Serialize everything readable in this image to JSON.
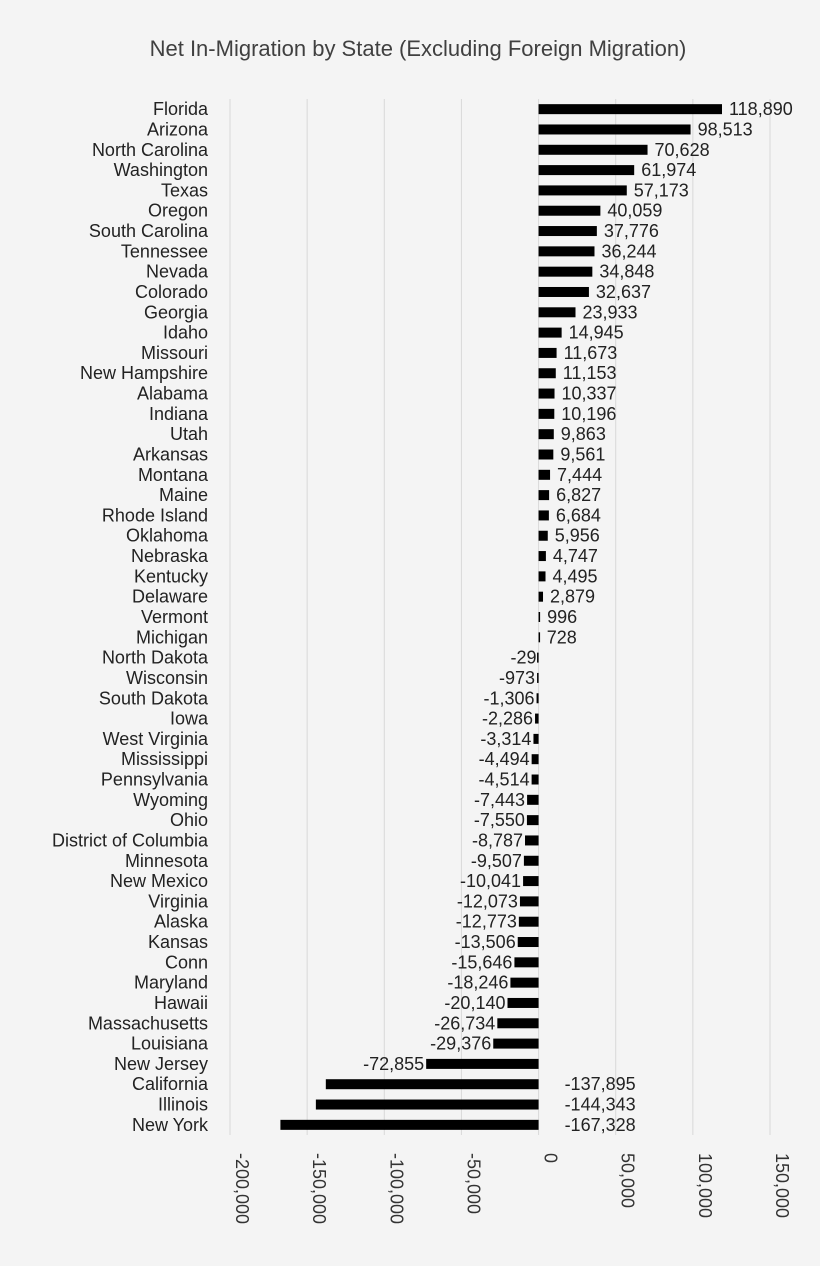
{
  "chart_data": {
    "type": "bar",
    "orientation": "horizontal",
    "title": "Net In-Migration by State (Excluding Foreign Migration)",
    "xlim": [
      -200000,
      150000
    ],
    "xticks": [
      -200000,
      -150000,
      -100000,
      -50000,
      0,
      50000,
      100000,
      150000
    ],
    "xtick_labels": [
      "-200,000",
      "-150,000",
      "-100,000",
      "-50,000",
      "0",
      "50,000",
      "100,000",
      "150,000"
    ],
    "grid": "vertical",
    "bar_color": "#000000",
    "categories": [
      "Florida",
      "Arizona",
      "North Carolina",
      "Washington",
      "Texas",
      "Oregon",
      "South Carolina",
      "Tennessee",
      "Nevada",
      "Colorado",
      "Georgia",
      "Idaho",
      "Missouri",
      "New Hampshire",
      "Alabama",
      "Indiana",
      "Utah",
      "Arkansas",
      "Montana",
      "Maine",
      "Rhode Island",
      "Oklahoma",
      "Nebraska",
      "Kentucky",
      "Delaware",
      "Vermont",
      "Michigan",
      "North Dakota",
      "Wisconsin",
      "South Dakota",
      "Iowa",
      "West Virginia",
      "Mississippi",
      "Pennsylvania",
      "Wyoming",
      "Ohio",
      "District of Columbia",
      "Minnesota",
      "New Mexico",
      "Virginia",
      "Alaska",
      "Kansas",
      "Conn",
      "Maryland",
      "Hawaii",
      "Massachusetts",
      "Louisiana",
      "New Jersey",
      "California",
      "Illinois",
      "New York"
    ],
    "values": [
      118890,
      98513,
      70628,
      61974,
      57173,
      40059,
      37776,
      36244,
      34848,
      32637,
      23933,
      14945,
      11673,
      11153,
      10337,
      10196,
      9863,
      9561,
      7444,
      6827,
      6684,
      5956,
      4747,
      4495,
      2879,
      996,
      728,
      -29,
      -973,
      -1306,
      -2286,
      -3314,
      -4494,
      -4514,
      -7443,
      -7550,
      -8787,
      -9507,
      -10041,
      -12073,
      -12773,
      -13506,
      -15646,
      -18246,
      -20140,
      -26734,
      -29376,
      -72855,
      -137895,
      -144343,
      -167328
    ],
    "value_labels": [
      "118,890",
      "98,513",
      "70,628",
      "61,974",
      "57,173",
      "40,059",
      "37,776",
      "36,244",
      "34,848",
      "32,637",
      "23,933",
      "14,945",
      "11,673",
      "11,153",
      "10,337",
      "10,196",
      "9,863",
      "9,561",
      "7,444",
      "6,827",
      "6,684",
      "5,956",
      "4,747",
      "4,495",
      "2,879",
      "996",
      "728",
      "-29",
      "-973",
      "-1,306",
      "-2,286",
      "-3,314",
      "-4,494",
      "-4,514",
      "-7,443",
      "-7,550",
      "-8,787",
      "-9,507",
      "-10,041",
      "-12,073",
      "-12,773",
      "-13,506",
      "-15,646",
      "-18,246",
      "-20,140",
      "-26,734",
      "-29,376",
      "-72,855",
      "-137,895",
      "-144,343",
      "-167,328"
    ]
  }
}
